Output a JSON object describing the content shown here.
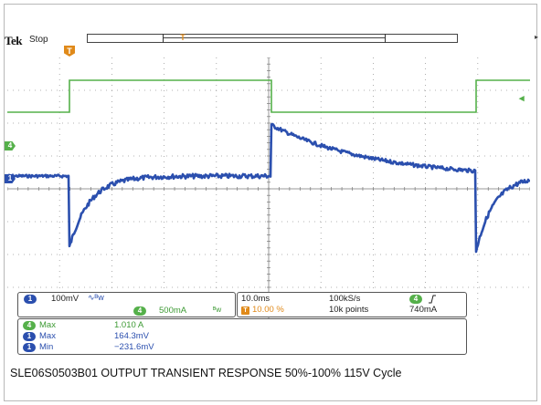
{
  "header": {
    "brand": "Tek",
    "status": "Stop",
    "trigger_marker": "T"
  },
  "channels": {
    "ch1": {
      "number": "1",
      "scale": "100mV",
      "coupling_icon": "∿ᴮw",
      "color": "#2b4fae"
    },
    "ch4": {
      "number": "4",
      "scale": "500mA",
      "coupling_icon": "ᴮw",
      "color": "#55b04a"
    }
  },
  "timebase": {
    "horizontal_scale": "10.0ms",
    "sample_rate": "100kS/s",
    "trigger_position": "10.00 %",
    "record_length": "10k points",
    "trigger_channel": "4",
    "trigger_slope_icon": "rising-edge",
    "trigger_level": "740mA"
  },
  "measurements": [
    {
      "channel": "4",
      "label": "Max",
      "value": "1.010 A"
    },
    {
      "channel": "1",
      "label": "Max",
      "value": "164.3mV"
    },
    {
      "channel": "1",
      "label": "Min",
      "value": "−231.6mV"
    }
  ],
  "caption": "SLE06S0503B01 OUTPUT TRANSIENT RESPONSE 50%-100% 115V Cycle",
  "colors": {
    "ch1": "#2b4fae",
    "ch4": "#55b04a",
    "trigger": "#e08a1a",
    "grid_dots": "#9a9a9a"
  }
}
